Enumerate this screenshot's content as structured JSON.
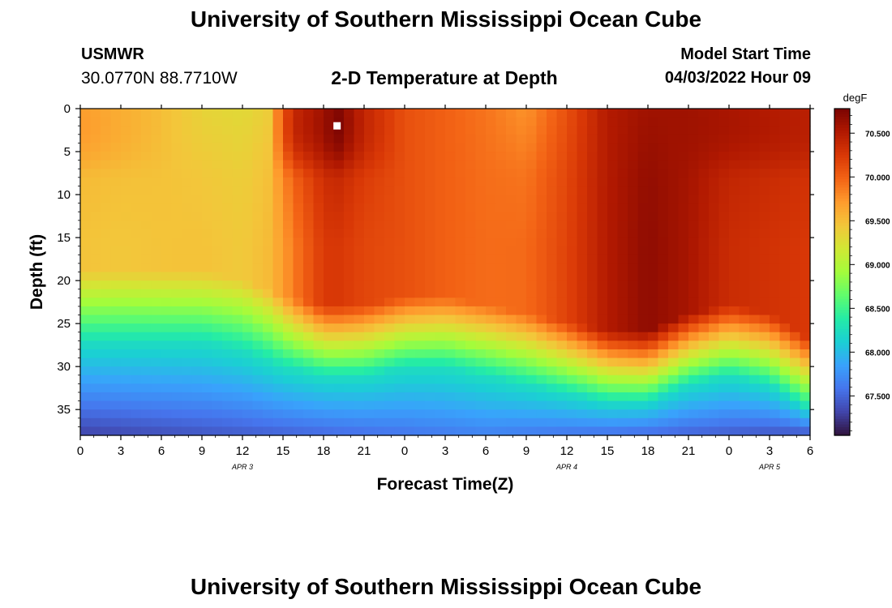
{
  "header": {
    "title": "University of Southern Mississippi Ocean Cube",
    "station": "USMWR",
    "coordinates": "30.0770N  88.7710W",
    "start_label": "Model Start Time",
    "start_value": "04/03/2022 Hour 09"
  },
  "footer": {
    "title": "University of Southern Mississippi Ocean Cube"
  },
  "colors": {
    "colormap": [
      "#30123b",
      "#4145ab",
      "#4675ed",
      "#39a2fc",
      "#1bcfd4",
      "#24eca6",
      "#61fc6c",
      "#a4fc3b",
      "#d1e834",
      "#f3c63a",
      "#fe9b2d",
      "#f36315",
      "#d93806",
      "#b11901",
      "#7a0402"
    ],
    "marker": "#ffffff"
  },
  "chart_data": {
    "type": "heatmap",
    "title": "2-D Temperature at Depth",
    "xlabel": "Forecast Time(Z)",
    "ylabel": "Depth (ft)",
    "xlim": [
      0,
      54
    ],
    "ylim": [
      38,
      0
    ],
    "x_ticks": [
      0,
      3,
      6,
      9,
      12,
      15,
      18,
      21,
      24,
      27,
      30,
      33,
      36,
      39,
      42,
      45,
      48,
      51,
      54
    ],
    "x_tick_labels": [
      "0",
      "3",
      "6",
      "9",
      "12",
      "15",
      "18",
      "21",
      "0",
      "3",
      "6",
      "9",
      "12",
      "15",
      "18",
      "21",
      "0",
      "3",
      "6"
    ],
    "y_ticks": [
      0,
      5,
      10,
      15,
      20,
      25,
      30,
      35
    ],
    "y_tick_labels": [
      "0",
      "5",
      "10",
      "15",
      "20",
      "25",
      "30",
      "35"
    ],
    "date_labels": [
      {
        "text": "APR 3",
        "x": 12
      },
      {
        "text": "APR 4",
        "x": 36
      },
      {
        "text": "APR 5",
        "x": 51
      }
    ],
    "colorbar": {
      "unit": "degF",
      "range": [
        67.05,
        70.78
      ],
      "ticks": [
        67.5,
        68.0,
        68.5,
        69.0,
        69.5,
        70.0,
        70.5
      ],
      "tick_labels": [
        "67.500",
        "68.000",
        "68.500",
        "69.000",
        "69.500",
        "70.000",
        "70.500"
      ]
    },
    "marker": {
      "x": 19,
      "depth": 2
    },
    "grid_resolution": {
      "x_steps": 72,
      "depth_steps": 38
    },
    "surface_profile": {
      "hours": [
        0,
        3,
        6,
        9,
        12,
        14,
        15,
        16,
        18,
        19,
        21,
        24,
        27,
        30,
        33,
        36,
        39,
        42,
        45,
        48,
        51,
        54
      ],
      "temps": [
        69.7,
        69.6,
        69.5,
        69.35,
        69.3,
        69.4,
        70.1,
        70.4,
        70.6,
        70.75,
        70.4,
        70.1,
        70.0,
        69.9,
        69.75,
        70.1,
        70.5,
        70.6,
        70.6,
        70.55,
        70.5,
        70.45
      ]
    },
    "mid_profile": {
      "hours": [
        0,
        3,
        6,
        9,
        12,
        15,
        18,
        21,
        24,
        27,
        30,
        33,
        36,
        39,
        42,
        45,
        48,
        51,
        54
      ],
      "temps": [
        69.4,
        69.4,
        69.45,
        69.5,
        69.45,
        69.6,
        70.15,
        70.1,
        70.1,
        70.0,
        69.95,
        70.0,
        70.2,
        70.5,
        70.7,
        70.55,
        70.3,
        70.25,
        70.2
      ]
    },
    "thermocline_depth": {
      "hours": [
        0,
        3,
        6,
        9,
        12,
        15,
        18,
        21,
        24,
        27,
        30,
        33,
        36,
        39,
        42,
        45,
        48,
        51,
        54
      ],
      "depths": [
        22,
        22,
        22,
        22,
        23,
        25,
        26,
        26,
        25,
        25,
        26,
        27,
        28,
        29,
        29,
        27,
        26,
        27,
        30
      ]
    },
    "bottom_temp": 67.3
  }
}
